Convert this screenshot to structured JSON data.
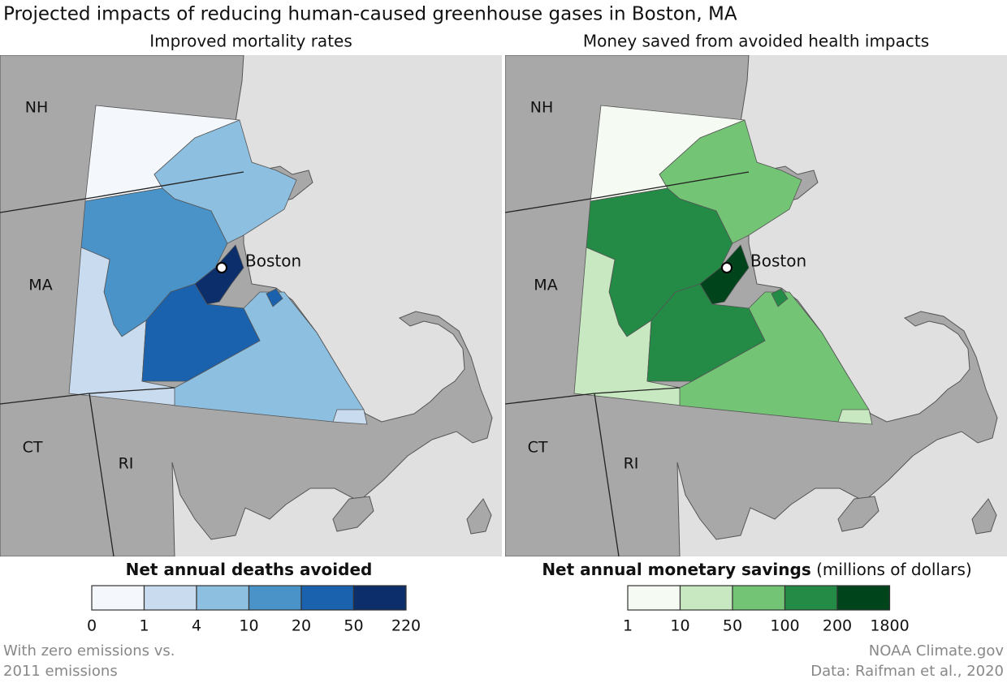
{
  "title": "Projected impacts of reducing human-caused greenhouse gases in Boston, MA",
  "panels": [
    {
      "subtitle": "Improved mortality rates",
      "state_labels": [
        "NH",
        "MA",
        "CT",
        "RI"
      ],
      "city_label": "Boston",
      "legend": {
        "title": "Net annual deaths avoided",
        "colors": [
          "#f4f8fd",
          "#c9dcef",
          "#8dbfe0",
          "#4a93c9",
          "#1a62ad",
          "#0c2e6b"
        ],
        "ticks": [
          0,
          1,
          4,
          10,
          20,
          50,
          220
        ]
      }
    },
    {
      "subtitle": "Money saved from avoided health impacts",
      "state_labels": [
        "NH",
        "MA",
        "CT",
        "RI"
      ],
      "city_label": "Boston",
      "legend": {
        "title": "Net annual monetary savings",
        "title_note": "(millions of dollars)",
        "colors": [
          "#f5fbf2",
          "#c7e8c0",
          "#74c476",
          "#238b45",
          "#00441b"
        ],
        "ticks": [
          1,
          10,
          50,
          100,
          200,
          1800
        ]
      }
    }
  ],
  "footnote": [
    "With zero emissions vs.",
    "2011 emissions"
  ],
  "credits": [
    "NOAA Climate.gov",
    "Data: Raifman et al., 2020"
  ]
}
